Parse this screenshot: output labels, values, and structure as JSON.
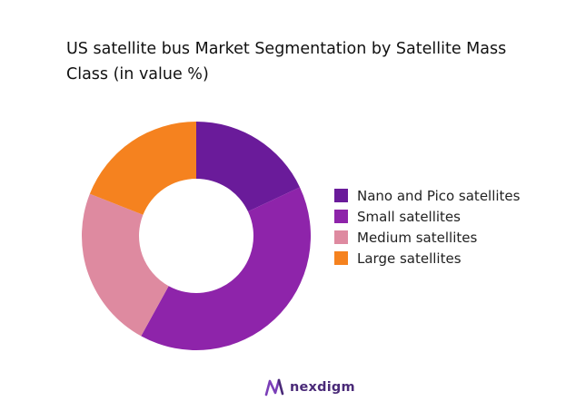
{
  "chart_data": {
    "type": "pie",
    "title": "US satellite bus Market Segmentation by Satellite Mass Class (in value %)",
    "categories": [
      "Nano and Pico satellites",
      "Small satellites",
      "Medium satellites",
      "Large satellites"
    ],
    "values": [
      18,
      40,
      23,
      19
    ],
    "colors": [
      "#6a1b9a",
      "#8e24aa",
      "#de8aa0",
      "#f5821f"
    ],
    "donut": true,
    "legend_position": "right"
  },
  "brand": {
    "name": "nexdigm",
    "color": "#4a2a78"
  }
}
